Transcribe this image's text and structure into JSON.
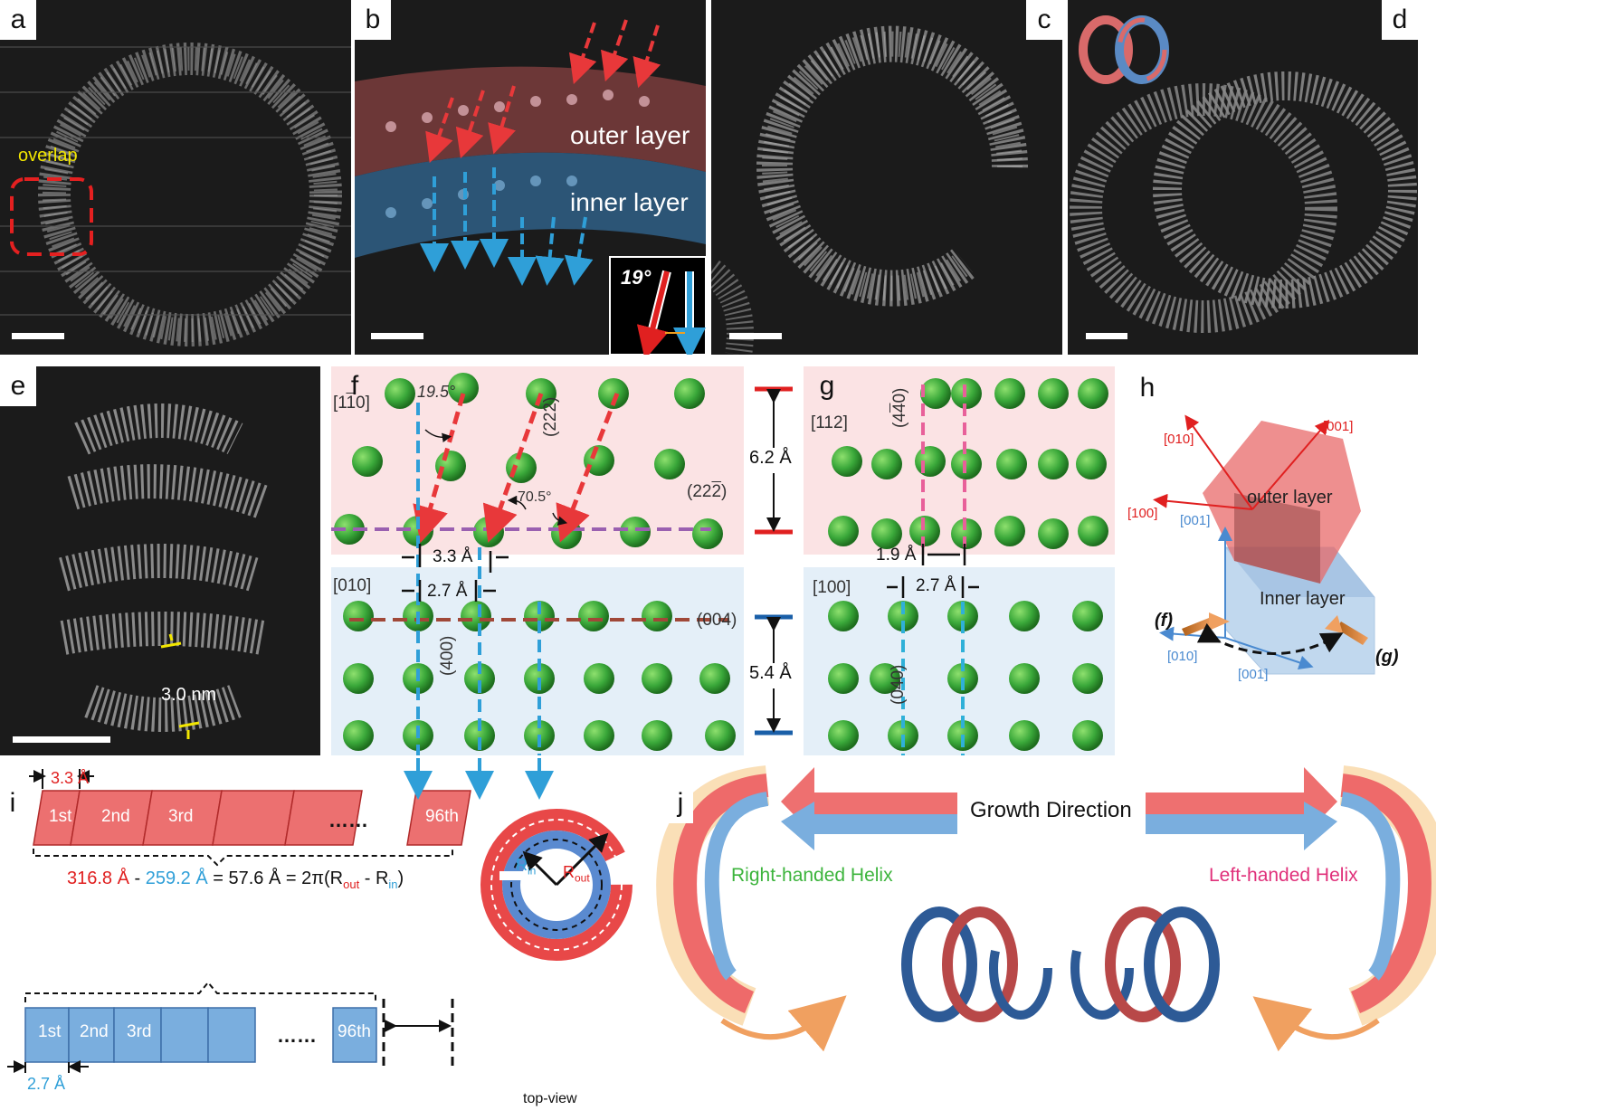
{
  "panel_labels": {
    "a": "a",
    "b": "b",
    "c": "c",
    "d": "d",
    "e": "e",
    "f": "f",
    "g": "g",
    "h": "h",
    "i": "i",
    "j": "j"
  },
  "panel_a": {
    "overlap": "overlap"
  },
  "panel_b": {
    "outer": "outer layer",
    "inner": "inner layer",
    "angle": "19°"
  },
  "panel_e": {
    "thickness": "3.0 nm"
  },
  "panel_f": {
    "dir_outer": "[1",
    "dir_outer_bar": "1",
    "dir_outer_end": "0]",
    "angle1": "19.5°",
    "plane222": "(222)",
    "plane22m2_a": "(22",
    "plane22m2_b": "2",
    "plane22m2_c": ")",
    "angle2": "70.5°",
    "d_outer": "3.3 Å",
    "dir_inner": "[010]",
    "d_inner": "2.7 Å",
    "plane004": "(004)",
    "plane400": "(400)"
  },
  "spacing": {
    "outer": "6.2 Å",
    "inner": "5.4 Å"
  },
  "panel_g": {
    "dir_outer": "[112]",
    "plane440_a": "(4",
    "plane440_b": "4",
    "plane440_c": "0)",
    "d_outer": "1.9 Å",
    "dir_inner": "[100]",
    "d_inner": "2.7 Å",
    "plane040": "(040)"
  },
  "panel_h": {
    "outer_layer": "outer layer",
    "inner_layer": "Inner layer",
    "outer_010": "[010]",
    "outer_001": "[001]",
    "outer_100": "[100]",
    "inner_001_up": "[001]",
    "inner_010": "[010]",
    "inner_001": "[001]",
    "f": "(f)",
    "g": "(g)"
  },
  "panel_i": {
    "d_outer": "3.3 Å",
    "d_inner": "2.7 Å",
    "outer_cells": [
      "1st",
      "2nd",
      "3rd"
    ],
    "last_cell": "96th",
    "dots": "……",
    "eq_red": "316.8 Å",
    "eq_minus": " - ",
    "eq_blue": "259.2 Å",
    "eq_mid": " = 57.6 Å = 2π(R",
    "eq_rout_sub": "out",
    "eq_minus2": " - R",
    "eq_rin_sub": "in",
    "eq_close": ")",
    "r_in": "R",
    "r_in_sub": "in",
    "r_out": "R",
    "r_out_sub": "out",
    "top_view": "top-view"
  },
  "panel_j": {
    "growth": "Growth Direction",
    "right": "Right-handed Helix",
    "left": "Left-handed Helix"
  },
  "colors": {
    "red": "#e8383a",
    "blue": "#2f9fd8",
    "green": "#3cb43c",
    "pink": "#e0307a",
    "yellow": "#f2e600",
    "orange": "#f0a060"
  }
}
